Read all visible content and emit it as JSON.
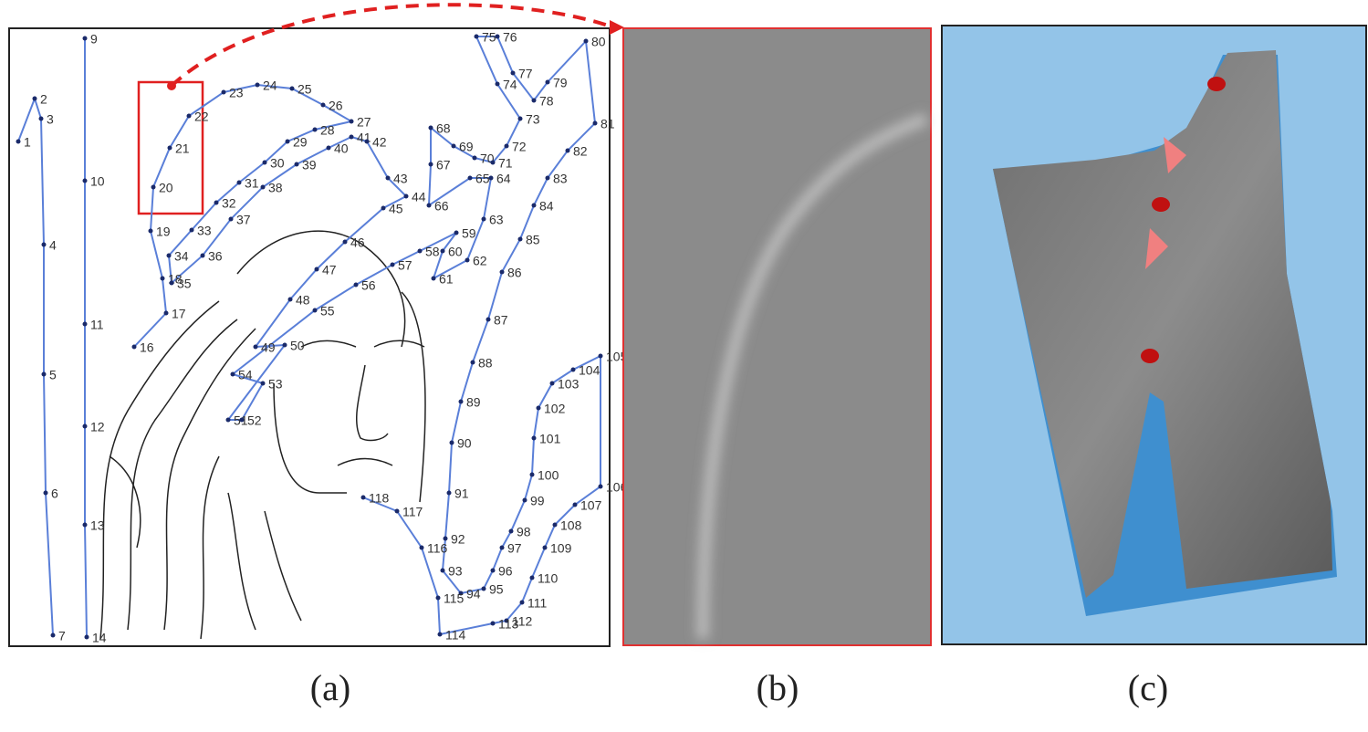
{
  "figure": {
    "panel_a": {
      "point_labels": [
        "1",
        "2",
        "3",
        "4",
        "5",
        "6",
        "7",
        "9",
        "10",
        "11",
        "12",
        "13",
        "14",
        "16",
        "17",
        "18",
        "19",
        "20",
        "21",
        "22",
        "23",
        "24",
        "25",
        "26",
        "27",
        "28",
        "29",
        "30",
        "31",
        "32",
        "33",
        "34",
        "35",
        "36",
        "37",
        "38",
        "39",
        "40",
        "41",
        "42",
        "43",
        "44",
        "45",
        "46",
        "47",
        "48",
        "49",
        "50",
        "51",
        "52",
        "53",
        "54",
        "55",
        "56",
        "57",
        "58",
        "59",
        "60",
        "61",
        "62",
        "63",
        "64",
        "65",
        "66",
        "67",
        "68",
        "69",
        "70",
        "71",
        "72",
        "73",
        "74",
        "75",
        "76",
        "77",
        "78",
        "79",
        "80",
        "81",
        "82",
        "83",
        "84",
        "85",
        "86",
        "87",
        "88",
        "89",
        "90",
        "91",
        "92",
        "93",
        "94",
        "95",
        "96",
        "97",
        "98",
        "99",
        "100",
        "101",
        "102",
        "103",
        "104",
        "105",
        "106",
        "107",
        "108",
        "109",
        "110",
        "111",
        "112",
        "113",
        "114",
        "115",
        "116",
        "117",
        "118"
      ]
    },
    "captions": [
      "(a)",
      "(b)",
      "(c)"
    ]
  }
}
